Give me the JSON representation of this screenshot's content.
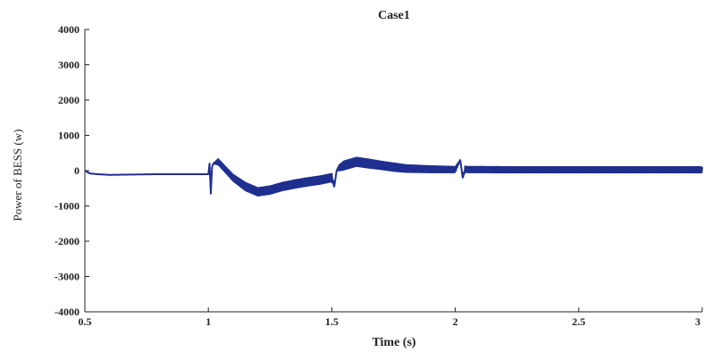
{
  "chart_data": {
    "type": "line",
    "title": "Case1",
    "xlabel": "Time (s)",
    "ylabel": "Power of BESS (w)",
    "xlim": [
      0.5,
      3
    ],
    "ylim": [
      -4000,
      4000
    ],
    "x_ticks": [
      0.5,
      1,
      1.5,
      2,
      2.5,
      3
    ],
    "x_tick_labels": [
      "0.5",
      "1",
      "1.5",
      "2",
      "2.5",
      "3"
    ],
    "y_ticks": [
      4000,
      3000,
      2000,
      1000,
      0,
      -1000,
      -2000,
      -3000,
      -4000
    ],
    "y_tick_labels": [
      "4000",
      "3000",
      "2000",
      "1000",
      "0",
      "-1000",
      "-2000",
      "-3000",
      "-4000"
    ],
    "grid": false,
    "line_color": "#1f2f8f",
    "series": [
      {
        "x": [
          0.5,
          0.52,
          0.55,
          0.6,
          0.7,
          0.8,
          0.9,
          0.99,
          1.0,
          1.005,
          1.01,
          1.015,
          1.02,
          1.04,
          1.06,
          1.1,
          1.15,
          1.2,
          1.25,
          1.3,
          1.35,
          1.4,
          1.45,
          1.5,
          1.51,
          1.52,
          1.53,
          1.55,
          1.6,
          1.65,
          1.7,
          1.75,
          1.8,
          1.9,
          2.0,
          2.02,
          2.03,
          2.04,
          2.05,
          2.1,
          2.2,
          2.3,
          2.4,
          2.5,
          2.6,
          2.7,
          2.8,
          2.9,
          3.0
        ],
        "y": [
          0,
          -80,
          -100,
          -120,
          -110,
          -100,
          -100,
          -100,
          -100,
          200,
          -650,
          100,
          200,
          250,
          100,
          -200,
          -450,
          -600,
          -550,
          -450,
          -380,
          -320,
          -270,
          -200,
          -450,
          20,
          80,
          150,
          250,
          200,
          150,
          100,
          60,
          40,
          30,
          300,
          -200,
          40,
          30,
          30,
          25,
          25,
          25,
          25,
          25,
          25,
          25,
          25,
          25
        ],
        "ripple_amplitude": [
          0,
          0,
          0,
          0,
          0,
          0,
          0,
          0,
          0,
          0,
          0,
          0,
          0,
          80,
          80,
          90,
          110,
          110,
          110,
          110,
          110,
          110,
          110,
          110,
          0,
          0,
          80,
          120,
          120,
          120,
          110,
          110,
          100,
          90,
          80,
          0,
          0,
          80,
          80,
          80,
          80,
          80,
          80,
          80,
          80,
          80,
          80,
          80,
          80
        ]
      }
    ]
  }
}
